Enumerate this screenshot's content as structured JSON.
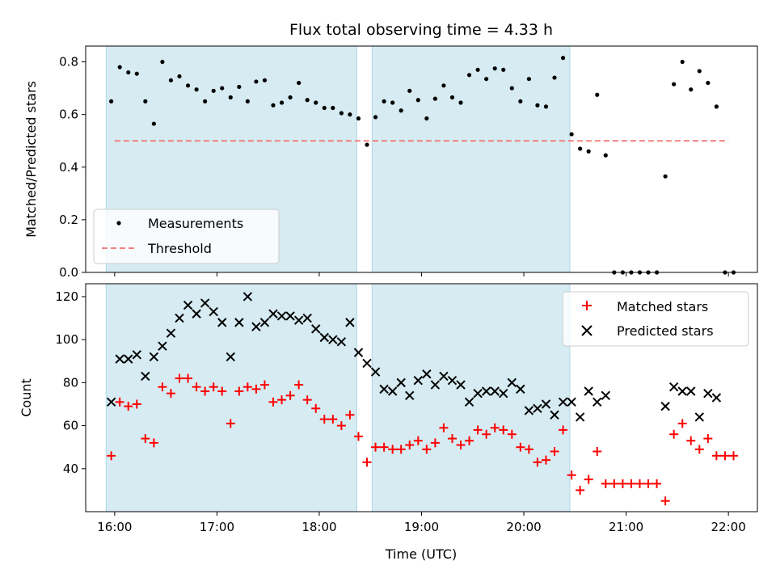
{
  "chart_data": [
    {
      "type": "scatter",
      "title": "Flux total observing time = 4.33 h",
      "xlabel": "",
      "ylabel": "Matched/Predicted stars",
      "xlim": [
        "15:43",
        "22:17"
      ],
      "ylim": [
        0,
        0.86
      ],
      "yticks": [
        "0.0",
        "0.2",
        "0.4",
        "0.6",
        "0.8"
      ],
      "grid": false,
      "legend_position": "lower-left",
      "observing_windows": [
        [
          "15:55",
          "18:22"
        ],
        [
          "18:31",
          "20:27"
        ]
      ],
      "threshold": {
        "name": "Threshold",
        "value": 0.5,
        "x_range": [
          "16:00",
          "22:00"
        ],
        "color": "#f08080"
      },
      "series": [
        {
          "name": "Measurements",
          "marker": "dot",
          "color": "#000000",
          "x": [
            "15:58",
            "16:03",
            "16:08",
            "16:13",
            "16:18",
            "16:23",
            "16:28",
            "16:33",
            "16:38",
            "16:43",
            "16:48",
            "16:53",
            "16:58",
            "17:03",
            "17:08",
            "17:13",
            "17:18",
            "17:23",
            "17:28",
            "17:33",
            "17:38",
            "17:43",
            "17:48",
            "17:53",
            "17:58",
            "18:03",
            "18:08",
            "18:13",
            "18:18",
            "18:23",
            "18:28",
            "18:33",
            "18:38",
            "18:43",
            "18:48",
            "18:53",
            "18:58",
            "19:03",
            "19:08",
            "19:13",
            "19:18",
            "19:23",
            "19:28",
            "19:33",
            "19:38",
            "19:43",
            "19:48",
            "19:53",
            "19:58",
            "20:03",
            "20:08",
            "20:13",
            "20:18",
            "20:23",
            "20:28",
            "20:33",
            "20:38",
            "20:43",
            "20:48",
            "20:53",
            "20:58",
            "21:03",
            "21:08",
            "21:13",
            "21:18",
            "21:23",
            "21:28",
            "21:33",
            "21:38",
            "21:43",
            "21:48",
            "21:53",
            "21:58",
            "22:03"
          ],
          "y": [
            0.65,
            0.78,
            0.76,
            0.755,
            0.65,
            0.565,
            0.8,
            0.73,
            0.745,
            0.71,
            0.695,
            0.65,
            0.69,
            0.7,
            0.665,
            0.705,
            0.65,
            0.725,
            0.73,
            0.635,
            0.645,
            0.665,
            0.72,
            0.655,
            0.645,
            0.625,
            0.625,
            0.605,
            0.6,
            0.585,
            0.485,
            0.59,
            0.65,
            0.645,
            0.615,
            0.69,
            0.655,
            0.585,
            0.66,
            0.71,
            0.665,
            0.645,
            0.75,
            0.77,
            0.735,
            0.775,
            0.77,
            0.7,
            0.65,
            0.735,
            0.635,
            0.63,
            0.74,
            0.815,
            0.525,
            0.47,
            0.46,
            0.675,
            0.445,
            0,
            0,
            0,
            0,
            0,
            0,
            0.365,
            0.715,
            0.8,
            0.695,
            0.765,
            0.72,
            0.63,
            0,
            0
          ]
        }
      ]
    },
    {
      "type": "scatter",
      "title": "",
      "xlabel": "Time (UTC)",
      "ylabel": "Count",
      "xlim": [
        "15:43",
        "22:17"
      ],
      "ylim": [
        20,
        126
      ],
      "yticks": [
        "40",
        "60",
        "80",
        "100",
        "120"
      ],
      "xticks": [
        "16:00",
        "17:00",
        "18:00",
        "19:00",
        "20:00",
        "21:00",
        "22:00"
      ],
      "grid": false,
      "legend_position": "upper-right",
      "observing_windows": [
        [
          "15:55",
          "18:22"
        ],
        [
          "18:31",
          "20:27"
        ]
      ],
      "series": [
        {
          "name": "Matched stars",
          "marker": "plus",
          "color": "#ff0000",
          "x": [
            "15:58",
            "16:03",
            "16:08",
            "16:13",
            "16:18",
            "16:23",
            "16:28",
            "16:33",
            "16:38",
            "16:43",
            "16:48",
            "16:53",
            "16:58",
            "17:03",
            "17:08",
            "17:13",
            "17:18",
            "17:23",
            "17:28",
            "17:33",
            "17:38",
            "17:43",
            "17:48",
            "17:53",
            "17:58",
            "18:03",
            "18:08",
            "18:13",
            "18:18",
            "18:23",
            "18:28",
            "18:33",
            "18:38",
            "18:43",
            "18:48",
            "18:53",
            "18:58",
            "19:03",
            "19:08",
            "19:13",
            "19:18",
            "19:23",
            "19:28",
            "19:33",
            "19:38",
            "19:43",
            "19:48",
            "19:53",
            "19:58",
            "20:03",
            "20:08",
            "20:13",
            "20:18",
            "20:23",
            "20:28",
            "20:33",
            "20:38",
            "20:43",
            "20:48",
            "20:53",
            "20:58",
            "21:03",
            "21:08",
            "21:13",
            "21:18",
            "21:23",
            "21:28",
            "21:33",
            "21:38",
            "21:43",
            "21:48",
            "21:53",
            "21:58",
            "22:03"
          ],
          "y": [
            46,
            71,
            69,
            70,
            54,
            52,
            78,
            75,
            82,
            82,
            78,
            76,
            78,
            76,
            61,
            76,
            78,
            77,
            79,
            71,
            72,
            74,
            79,
            72,
            68,
            63,
            63,
            60,
            65,
            55,
            43,
            50,
            50,
            49,
            49,
            51,
            53,
            49,
            52,
            59,
            54,
            51,
            53,
            58,
            56,
            59,
            58,
            56,
            50,
            49,
            43,
            44,
            48,
            58,
            37,
            30,
            35,
            48,
            33,
            33,
            33,
            33,
            33,
            33,
            33,
            25,
            56,
            61,
            53,
            49,
            54,
            46,
            46,
            46
          ]
        },
        {
          "name": "Predicted stars",
          "marker": "x",
          "color": "#000000",
          "x": [
            "15:58",
            "16:03",
            "16:08",
            "16:13",
            "16:18",
            "16:23",
            "16:28",
            "16:33",
            "16:38",
            "16:43",
            "16:48",
            "16:53",
            "16:58",
            "17:03",
            "17:08",
            "17:13",
            "17:18",
            "17:23",
            "17:28",
            "17:33",
            "17:38",
            "17:43",
            "17:48",
            "17:53",
            "17:58",
            "18:03",
            "18:08",
            "18:13",
            "18:18",
            "18:23",
            "18:28",
            "18:33",
            "18:38",
            "18:43",
            "18:48",
            "18:53",
            "18:58",
            "19:03",
            "19:08",
            "19:13",
            "19:18",
            "19:23",
            "19:28",
            "19:33",
            "19:38",
            "19:43",
            "19:48",
            "19:53",
            "19:58",
            "20:03",
            "20:08",
            "20:13",
            "20:18",
            "20:23",
            "20:28",
            "20:33",
            "20:38",
            "20:43",
            "20:48",
            "21:23",
            "21:28",
            "21:33",
            "21:38",
            "21:43",
            "21:48",
            "21:53"
          ],
          "y": [
            71,
            91,
            91,
            93,
            83,
            92,
            97,
            103,
            110,
            116,
            112,
            117,
            113,
            108,
            92,
            108,
            120,
            106,
            108,
            112,
            111,
            111,
            109,
            110,
            105,
            101,
            100,
            99,
            108,
            94,
            89,
            85,
            77,
            76,
            80,
            74,
            81,
            84,
            79,
            83,
            81,
            79,
            71,
            75,
            76,
            76,
            75,
            80,
            77,
            67,
            68,
            70,
            65,
            71,
            71,
            64,
            76,
            71,
            74,
            69,
            78,
            76,
            76,
            64,
            75,
            73
          ]
        }
      ]
    }
  ]
}
